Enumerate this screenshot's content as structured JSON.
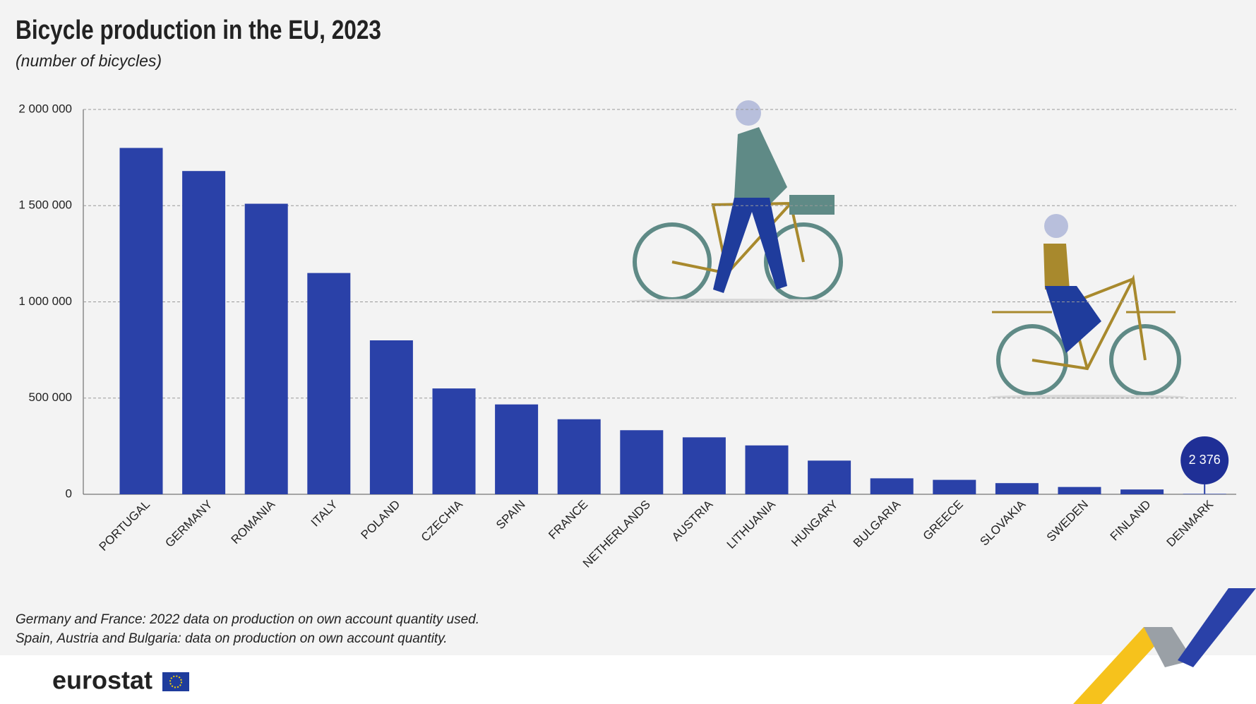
{
  "chart_data": {
    "type": "bar",
    "title": "Bicycle production in the EU, 2023",
    "subtitle": "(number of bicycles)",
    "categories": [
      "PORTUGAL",
      "GERMANY",
      "ROMANIA",
      "ITALY",
      "POLAND",
      "CZECHIA",
      "SPAIN",
      "FRANCE",
      "NETHERLANDS",
      "AUSTRIA",
      "LITHUANIA",
      "HUNGARY",
      "BULGARIA",
      "GREECE",
      "SLOVAKIA",
      "SWEDEN",
      "FINLAND",
      "DENMARK"
    ],
    "values": [
      1800000,
      1680000,
      1510000,
      1150000,
      800000,
      550000,
      467000,
      390000,
      333000,
      296000,
      254000,
      175000,
      83000,
      75000,
      58000,
      38000,
      25000,
      2376
    ],
    "value_labels": [
      null,
      null,
      null,
      null,
      null,
      null,
      null,
      null,
      null,
      null,
      null,
      null,
      null,
      null,
      null,
      null,
      null,
      "2 376"
    ],
    "color": "#2a41a8",
    "ylim": [
      0,
      2000000
    ],
    "yticks": [
      {
        "value": 0,
        "label": "0"
      },
      {
        "value": 500000,
        "label": "500 000"
      },
      {
        "value": 1000000,
        "label": "1 000 000"
      },
      {
        "value": 1500000,
        "label": "1 500 000"
      },
      {
        "value": 2000000,
        "label": "2 000 000"
      }
    ],
    "grid": true,
    "notes": [
      "Germany and France: 2022 data on production on own account quantity used.",
      "Spain, Austria and Bulgaria: data on production on own account quantity."
    ],
    "source": "eurostat"
  }
}
